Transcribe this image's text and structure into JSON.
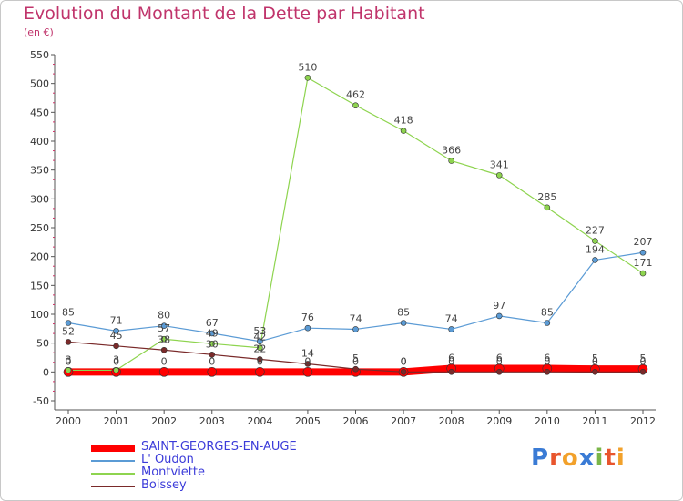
{
  "page": {
    "title": "Evolution du Montant de la Dette par Habitant",
    "subtitle": "(en €)",
    "logo_text": "Proxiti",
    "colors": {
      "title": "#c0346b",
      "legend_text": "#3b3bd9",
      "axis": "#555555",
      "grid_tick": "#cc3366"
    }
  },
  "chart_data": {
    "type": "line",
    "title": "Evolution du Montant de la Dette par Habitant",
    "subtitle": "(en €)",
    "xlabel": "",
    "ylabel": "",
    "x": [
      "2000",
      "2001",
      "2002",
      "2003",
      "2004",
      "2005",
      "2006",
      "2007",
      "2008",
      "2009",
      "2010",
      "2011",
      "2012"
    ],
    "ylim": [
      -50,
      550
    ],
    "yticks": [
      -50,
      0,
      50,
      100,
      150,
      200,
      250,
      300,
      350,
      400,
      450,
      500,
      550
    ],
    "grid": false,
    "legend_position": "bottom-left",
    "series": [
      {
        "name": "SAINT-GEORGES-EN-AUGE",
        "color": "#ff0000",
        "width": 8,
        "values": [
          0,
          0,
          0,
          0,
          0,
          0,
          0,
          0,
          6,
          6,
          6,
          5,
          5
        ]
      },
      {
        "name": "L' Oudon",
        "color": "#5b9bd5",
        "width": 1.2,
        "values": [
          85,
          71,
          80,
          67,
          53,
          76,
          74,
          85,
          74,
          97,
          85,
          194,
          207
        ]
      },
      {
        "name": "Montviette",
        "color": "#8ed44f",
        "width": 1.2,
        "values": [
          3,
          3,
          57,
          49,
          42,
          510,
          462,
          418,
          366,
          341,
          285,
          227,
          171
        ]
      },
      {
        "name": "Boissey",
        "color": "#7a2a2a",
        "width": 1.2,
        "values": [
          52,
          45,
          38,
          30,
          22,
          14,
          5,
          0,
          0,
          0,
          0,
          0,
          0
        ]
      }
    ]
  }
}
